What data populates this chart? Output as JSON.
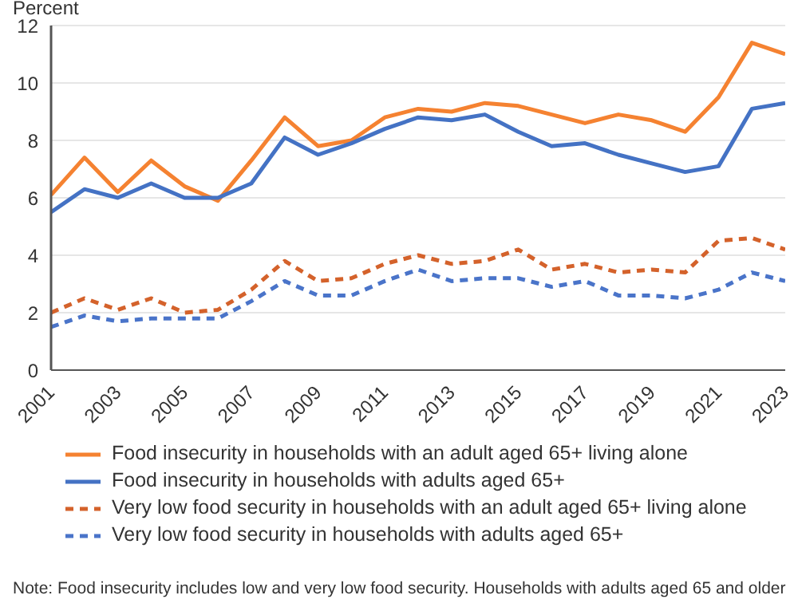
{
  "chart_data": {
    "type": "line",
    "ylabel": "Percent",
    "x": [
      2001,
      2002,
      2003,
      2004,
      2005,
      2006,
      2007,
      2008,
      2009,
      2010,
      2011,
      2012,
      2013,
      2014,
      2015,
      2016,
      2017,
      2018,
      2019,
      2020,
      2021,
      2022,
      2023
    ],
    "series": [
      {
        "name": "Food insecurity in households with an adult aged 65+ living alone",
        "color": "#f58231",
        "line_style": "solid",
        "values": [
          6.1,
          7.4,
          6.2,
          7.3,
          6.4,
          5.9,
          7.3,
          8.8,
          7.8,
          8.0,
          8.8,
          9.1,
          9.0,
          9.3,
          9.2,
          8.9,
          8.6,
          8.9,
          8.7,
          8.3,
          9.5,
          11.4,
          11.0
        ]
      },
      {
        "name": "Food insecurity in households with adults aged 65+",
        "color": "#4472c4",
        "line_style": "solid",
        "values": [
          5.5,
          6.3,
          6.0,
          6.5,
          6.0,
          6.0,
          6.5,
          8.1,
          7.5,
          7.9,
          8.4,
          8.8,
          8.7,
          8.9,
          8.3,
          7.8,
          7.9,
          7.5,
          7.2,
          6.9,
          7.1,
          9.1,
          9.3
        ]
      },
      {
        "name": "Very low food security in households with an adult aged 65+ living alone",
        "color": "#d4622b",
        "line_style": "dashed",
        "values": [
          2.0,
          2.5,
          2.1,
          2.5,
          2.0,
          2.1,
          2.8,
          3.8,
          3.1,
          3.2,
          3.7,
          4.0,
          3.7,
          3.8,
          4.2,
          3.5,
          3.7,
          3.4,
          3.5,
          3.4,
          4.5,
          4.6,
          4.2
        ]
      },
      {
        "name": "Very low food security in households with adults aged 65+",
        "color": "#4a74c9",
        "line_style": "dashed",
        "values": [
          1.5,
          1.9,
          1.7,
          1.8,
          1.8,
          1.8,
          2.4,
          3.1,
          2.6,
          2.6,
          3.1,
          3.5,
          3.1,
          3.2,
          3.2,
          2.9,
          3.1,
          2.6,
          2.6,
          2.5,
          2.8,
          3.4,
          3.1
        ]
      }
    ],
    "xlim": [
      2001,
      2023
    ],
    "xticks": [
      2001,
      2003,
      2005,
      2007,
      2009,
      2011,
      2013,
      2015,
      2017,
      2019,
      2021,
      2023
    ],
    "ylim": [
      0,
      12
    ],
    "yticks": [
      0,
      2,
      4,
      6,
      8,
      10,
      12
    ],
    "grid": "y",
    "legend": "bottom",
    "marker": "none",
    "annotations": [
      "Note: Food insecurity includes low and very low food security. Households with adults aged 65 and older"
    ]
  }
}
